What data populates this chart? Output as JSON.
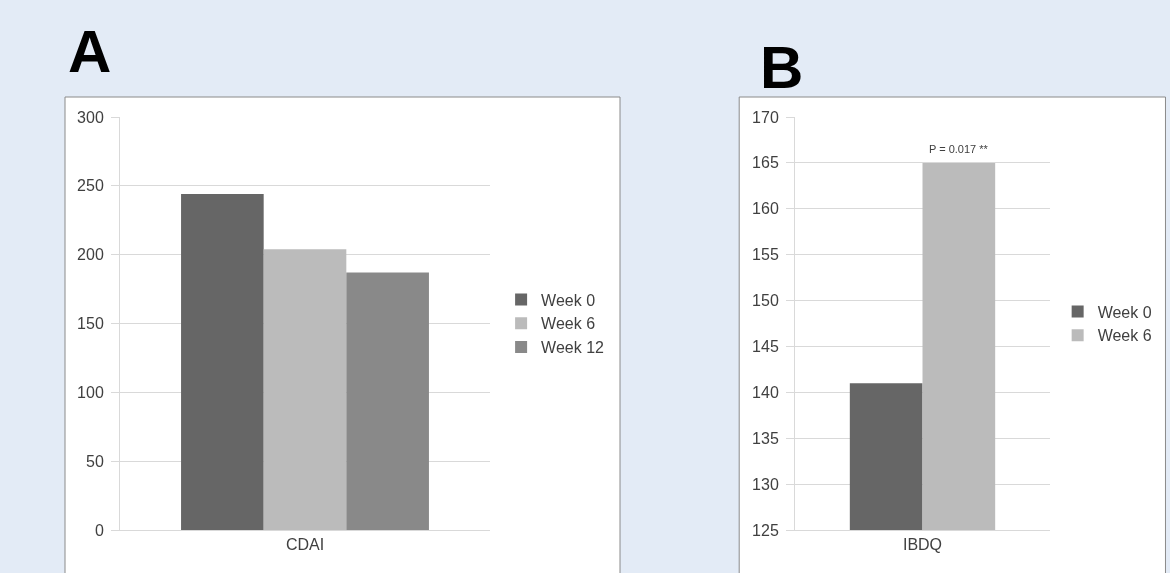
{
  "chart_data": [
    {
      "type": "bar",
      "title": "A",
      "categories": [
        "CDAI"
      ],
      "series": [
        {
          "name": "Week 0",
          "color": "#666666",
          "values": [
            244
          ]
        },
        {
          "name": "Week 6",
          "color": "#bbbbbb",
          "values": [
            204
          ]
        },
        {
          "name": "Week 12",
          "color": "#898989",
          "values": [
            187
          ]
        }
      ],
      "ylim": [
        0,
        300
      ],
      "yticks": [
        0,
        50,
        100,
        150,
        200,
        250,
        300
      ],
      "grid": "y",
      "legend": "right"
    },
    {
      "type": "bar",
      "title": "B",
      "categories": [
        "IBDQ"
      ],
      "series": [
        {
          "name": "Week 0",
          "color": "#666666",
          "values": [
            141
          ]
        },
        {
          "name": "Week 6",
          "color": "#bbbbbb",
          "values": [
            165
          ]
        }
      ],
      "ylim": [
        125,
        170
      ],
      "yticks": [
        125,
        130,
        135,
        140,
        145,
        150,
        155,
        160,
        165,
        170
      ],
      "grid": "y",
      "legend": "right",
      "annotations": [
        {
          "text": "P = 0.017 **",
          "x": "IBDQ",
          "y": 165
        }
      ]
    }
  ]
}
